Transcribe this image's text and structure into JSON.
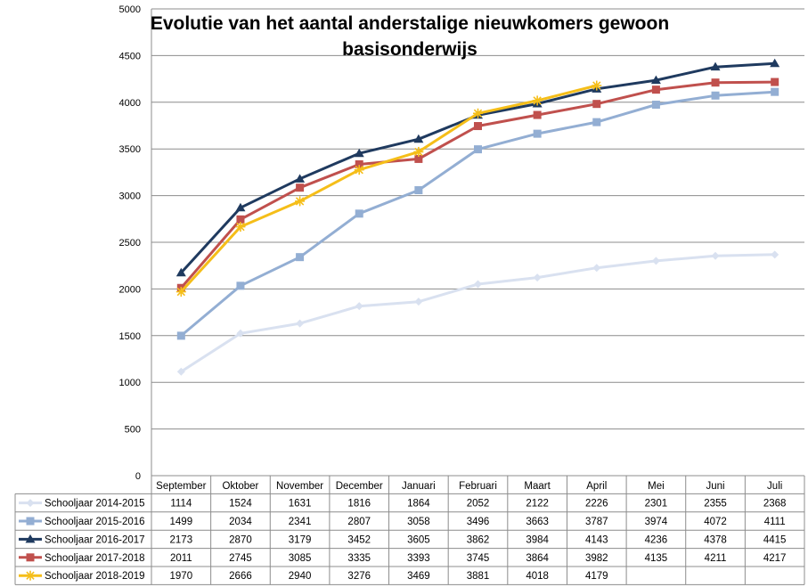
{
  "chart_data": {
    "type": "line",
    "title": "Evolutie van het aantal anderstalige nieuwkomers gewoon basisonderwijs",
    "categories": [
      "September",
      "Oktober",
      "November",
      "December",
      "Januari",
      "Februari",
      "Maart",
      "April",
      "Mei",
      "Juni",
      "Juli"
    ],
    "ylim": [
      0,
      5000
    ],
    "yticks": [
      "0",
      "500",
      "1000",
      "1500",
      "2000",
      "2500",
      "3000",
      "3500",
      "4000",
      "4500",
      "5000"
    ],
    "grid": true,
    "legend": "data-table-below",
    "series": [
      {
        "name": "Schooljaar 2014-2015",
        "color": "#d9e1f0",
        "marker": "diamond",
        "values": [
          1114,
          1524,
          1631,
          1816,
          1864,
          2052,
          2122,
          2226,
          2301,
          2355,
          2368
        ]
      },
      {
        "name": "Schooljaar 2015-2016",
        "color": "#93aed3",
        "marker": "square",
        "values": [
          1499,
          2034,
          2341,
          2807,
          3058,
          3496,
          3663,
          3787,
          3974,
          4072,
          4111
        ]
      },
      {
        "name": "Schooljaar 2016-2017",
        "color": "#1f3a5f",
        "marker": "triangle",
        "values": [
          2173,
          2870,
          3179,
          3452,
          3605,
          3862,
          3984,
          4143,
          4236,
          4378,
          4415
        ]
      },
      {
        "name": "Schooljaar 2017-2018",
        "color": "#c0504d",
        "marker": "square",
        "values": [
          2011,
          2745,
          3085,
          3335,
          3393,
          3745,
          3864,
          3982,
          4135,
          4211,
          4217
        ]
      },
      {
        "name": "Schooljaar 2018-2019",
        "color": "#f5be19",
        "marker": "star",
        "values": [
          1970,
          2666,
          2940,
          3276,
          3469,
          3881,
          4018,
          4179,
          null,
          null,
          null
        ]
      }
    ]
  }
}
